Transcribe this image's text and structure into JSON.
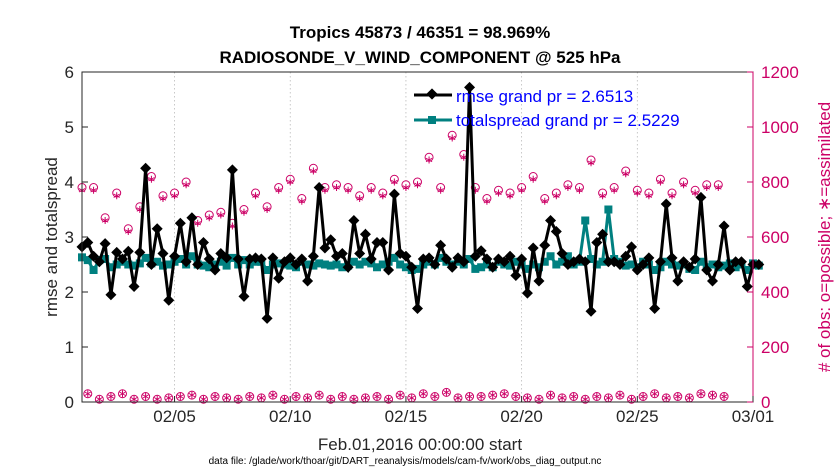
{
  "chart_data": {
    "type": "line",
    "title": [
      "Tropics 45873 / 46351 = 98.969%",
      "RADIOSONDE_V_WIND_COMPONENT @ 525 hPa"
    ],
    "xlabel": "Feb.01,2016 00:00:00 start",
    "ylabel_left": "rmse and totalspread",
    "ylabel_right": "# of obs: o=possible; ∗=assimilated",
    "footnote": "data file: /glade/work/thoar/git/DART_reanalysis/models/cam-fv/work/obs_diag_output.nc",
    "xlim": [
      1,
      30
    ],
    "x_ticks": [
      5,
      10,
      15,
      20,
      25,
      30
    ],
    "x_tick_labels": [
      "02/05",
      "02/10",
      "02/15",
      "02/20",
      "02/25",
      "03/01"
    ],
    "ylim_left": [
      0,
      6
    ],
    "y_ticks_left": [
      "0",
      "1",
      "2",
      "3",
      "4",
      "5",
      "6"
    ],
    "ylim_right": [
      0,
      1200
    ],
    "y_ticks_right": [
      "0",
      "200",
      "400",
      "600",
      "800",
      "1000",
      "1200"
    ],
    "grid": "x-only dotted",
    "legend_position": "top-right",
    "colors": {
      "rmse": "#000000",
      "spread": "#008080",
      "obs": "#cc0066",
      "legend_text": "#0000ff",
      "right_axis": "#cc0066"
    },
    "x_step": 0.25,
    "series": [
      {
        "name": "rmse grand pr = 2.6513",
        "key": "rmse",
        "values": [
          2.82,
          2.9,
          2.65,
          2.55,
          2.88,
          1.95,
          2.72,
          2.6,
          2.74,
          2.1,
          2.72,
          4.25,
          2.5,
          3.15,
          2.7,
          1.85,
          2.65,
          3.25,
          2.55,
          3.35,
          2.5,
          2.9,
          2.6,
          2.4,
          2.7,
          2.62,
          4.22,
          2.6,
          1.92,
          2.6,
          2.62,
          2.6,
          1.52,
          2.62,
          2.25,
          2.55,
          2.62,
          2.5,
          2.6,
          2.2,
          2.65,
          3.9,
          2.8,
          2.95,
          2.65,
          2.7,
          2.45,
          3.3,
          2.7,
          3.05,
          2.6,
          2.9,
          2.9,
          2.4,
          3.78,
          2.7,
          2.65,
          2.45,
          1.7,
          2.6,
          2.62,
          2.5,
          2.85,
          2.6,
          2.45,
          2.62,
          2.55,
          5.72,
          2.65,
          2.75,
          2.6,
          2.45,
          2.6,
          2.55,
          2.65,
          2.3,
          2.6,
          1.98,
          2.8,
          2.2,
          2.85,
          3.3,
          3.1,
          2.7,
          2.5,
          2.55,
          2.6,
          2.55,
          1.65,
          2.9,
          3.05,
          2.55,
          2.55,
          2.5,
          2.65,
          2.82,
          2.4,
          2.5,
          2.62,
          1.7,
          2.55,
          3.6,
          2.62,
          2.2,
          2.55,
          2.45,
          2.6,
          3.72,
          2.4,
          2.2,
          2.5,
          3.2,
          2.4,
          2.55,
          2.55,
          2.1,
          2.5,
          2.5
        ]
      },
      {
        "name": "totalspread grand pr = 2.5229",
        "key": "spread",
        "values": [
          2.63,
          2.58,
          2.4,
          2.58,
          2.6,
          2.45,
          2.5,
          2.55,
          2.5,
          2.48,
          2.52,
          2.62,
          2.52,
          2.55,
          2.48,
          2.5,
          2.55,
          2.6,
          2.5,
          2.65,
          2.5,
          2.48,
          2.45,
          2.5,
          2.55,
          2.48,
          2.62,
          2.5,
          2.58,
          2.5,
          2.55,
          2.55,
          2.4,
          2.5,
          2.52,
          2.5,
          2.48,
          2.45,
          2.55,
          2.5,
          2.48,
          2.52,
          2.5,
          2.48,
          2.5,
          2.45,
          2.48,
          2.55,
          2.5,
          2.55,
          2.52,
          2.45,
          2.5,
          2.55,
          2.62,
          2.5,
          2.45,
          2.4,
          2.42,
          2.5,
          2.55,
          2.5,
          2.62,
          2.55,
          2.5,
          2.55,
          2.5,
          2.6,
          2.42,
          2.45,
          2.5,
          2.45,
          2.55,
          2.5,
          2.48,
          2.55,
          2.5,
          2.42,
          2.5,
          2.45,
          2.55,
          2.65,
          2.5,
          2.55,
          2.65,
          2.5,
          2.55,
          3.3,
          2.6,
          2.5,
          2.55,
          3.5,
          2.6,
          2.55,
          2.48,
          2.5,
          2.45,
          2.55,
          2.5,
          2.4,
          2.45,
          2.55,
          2.5,
          2.48,
          2.5,
          2.42,
          2.4,
          2.55,
          2.45,
          2.5,
          2.45,
          2.48,
          2.52,
          2.45,
          2.5,
          2.4,
          2.52,
          2.48
        ]
      },
      {
        "name": "# of obs possible",
        "key": "obs_possible",
        "values": [
          780,
          30,
          780,
          10,
          670,
          20,
          760,
          30,
          630,
          10,
          710,
          20,
          820,
          10,
          750,
          15,
          760,
          20,
          800,
          25,
          660,
          10,
          680,
          20,
          690,
          15,
          650,
          10,
          700,
          20,
          760,
          15,
          710,
          25,
          780,
          10,
          810,
          20,
          740,
          15,
          850,
          25,
          780,
          10,
          790,
          20,
          780,
          10,
          750,
          15,
          780,
          20,
          760,
          10,
          810,
          25,
          790,
          15,
          800,
          30,
          890,
          20,
          780,
          35,
          970,
          15,
          900,
          20,
          780,
          20,
          740,
          25,
          770,
          30,
          760,
          20,
          780,
          15,
          820,
          10,
          740,
          25,
          760,
          15,
          790,
          20,
          780,
          10,
          880,
          20,
          760,
          15,
          780,
          25,
          840,
          10,
          770,
          20,
          760,
          30,
          810,
          15,
          760,
          20,
          800,
          15,
          770,
          30,
          790,
          25,
          790,
          20
        ]
      },
      {
        "name": "# of obs assimilated",
        "key": "obs_assim",
        "values": [
          770,
          30,
          770,
          10,
          660,
          20,
          750,
          30,
          620,
          10,
          700,
          20,
          810,
          10,
          740,
          15,
          750,
          20,
          790,
          25,
          650,
          10,
          670,
          20,
          680,
          15,
          640,
          10,
          690,
          20,
          750,
          15,
          700,
          25,
          770,
          10,
          800,
          20,
          730,
          15,
          840,
          25,
          770,
          10,
          780,
          20,
          770,
          10,
          740,
          15,
          770,
          20,
          750,
          10,
          800,
          25,
          780,
          15,
          790,
          30,
          880,
          20,
          770,
          35,
          960,
          15,
          890,
          20,
          770,
          20,
          730,
          25,
          760,
          30,
          750,
          20,
          770,
          15,
          810,
          10,
          730,
          25,
          750,
          15,
          780,
          20,
          770,
          10,
          870,
          20,
          750,
          15,
          770,
          25,
          830,
          10,
          760,
          20,
          750,
          30,
          800,
          15,
          750,
          20,
          790,
          15,
          760,
          30,
          780,
          25,
          780,
          20
        ]
      }
    ]
  }
}
